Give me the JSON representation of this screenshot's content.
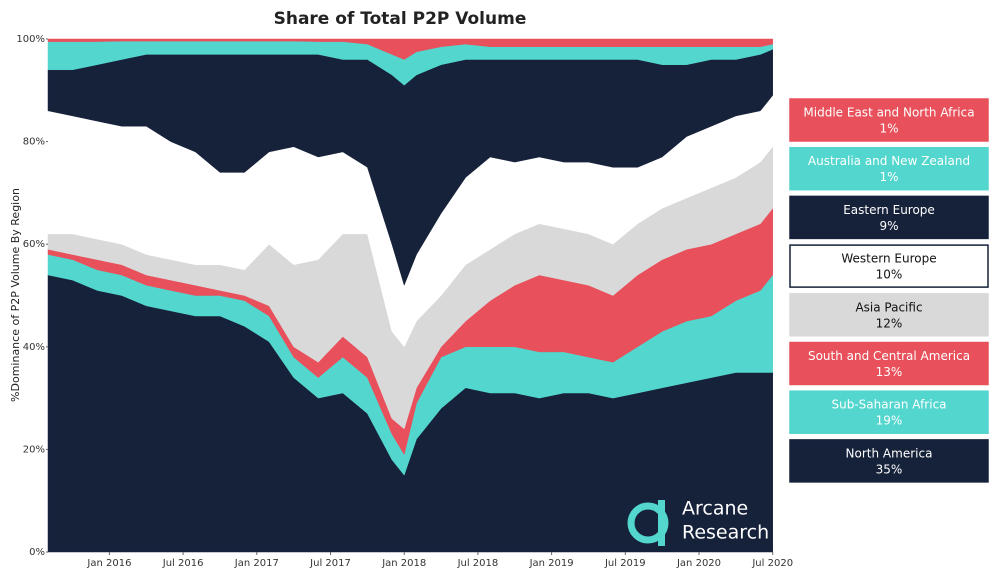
{
  "chart_data": {
    "type": "stacked_area",
    "title": "Share of Total P2P Volume",
    "y_label": "%Dominance of P2P Volume By Region",
    "x": [
      "2015-08",
      "2015-10",
      "2015-12",
      "2016-02",
      "2016-04",
      "2016-06",
      "2016-08",
      "2016-10",
      "2016-12",
      "2017-02",
      "2017-04",
      "2017-06",
      "2017-08",
      "2017-10",
      "2017-12",
      "2018-01",
      "2018-02",
      "2018-04",
      "2018-06",
      "2018-08",
      "2018-10",
      "2018-12",
      "2019-02",
      "2019-04",
      "2019-06",
      "2019-08",
      "2019-10",
      "2019-12",
      "2020-02",
      "2020-04",
      "2020-06",
      "2020-07"
    ],
    "xlim": [
      "2015-08",
      "2020-08"
    ],
    "xticks": [
      {
        "value": "2016-01",
        "label": "Jan 2016"
      },
      {
        "value": "2016-07",
        "label": "Jul 2016"
      },
      {
        "value": "2017-01",
        "label": "Jan 2017"
      },
      {
        "value": "2017-07",
        "label": "Jul 2017"
      },
      {
        "value": "2018-01",
        "label": "Jan 2018"
      },
      {
        "value": "2018-07",
        "label": "Jul 2018"
      },
      {
        "value": "2019-01",
        "label": "Jan 2019"
      },
      {
        "value": "2019-07",
        "label": "Jul 2019"
      },
      {
        "value": "2020-01",
        "label": "Jan 2020"
      },
      {
        "value": "2020-07",
        "label": "Jul 2020"
      }
    ],
    "ylim": [
      0,
      100
    ],
    "yticks": [
      {
        "value": 0,
        "label": "0%"
      },
      {
        "value": 20,
        "label": "20%"
      },
      {
        "value": 40,
        "label": "40%"
      },
      {
        "value": 60,
        "label": "60%"
      },
      {
        "value": 80,
        "label": "80%"
      },
      {
        "value": 100,
        "label": "100%"
      }
    ],
    "grid": false,
    "legend": "right",
    "watermark": [
      "Arcane",
      "Research"
    ],
    "series": [
      {
        "name": "North America",
        "color": "#16213a",
        "share": 35,
        "share_label": "35%",
        "values": [
          54,
          53,
          51,
          50,
          48,
          47,
          46,
          46,
          44,
          41,
          34,
          30,
          31,
          27,
          18,
          15,
          22,
          28,
          32,
          31,
          31,
          30,
          31,
          31,
          30,
          31,
          32,
          33,
          34,
          35,
          35,
          35
        ]
      },
      {
        "name": "Sub-Saharan Africa",
        "color": "#52d6cd",
        "share": 19,
        "share_label": "19%",
        "values": [
          4,
          4,
          4,
          4,
          4,
          4,
          4,
          4,
          5,
          5,
          4,
          4,
          7,
          7,
          5,
          4,
          7,
          10,
          8,
          9,
          9,
          9,
          8,
          7,
          7,
          9,
          11,
          12,
          12,
          14,
          16,
          19
        ]
      },
      {
        "name": "South and Central America",
        "color": "#e8505b",
        "share": 13,
        "share_label": "13%",
        "values": [
          1,
          1,
          2,
          2,
          2,
          2,
          2,
          1,
          1,
          2,
          2,
          3,
          4,
          4,
          3,
          5,
          3,
          2,
          5,
          9,
          12,
          15,
          14,
          14,
          13,
          14,
          14,
          14,
          14,
          13,
          13,
          13
        ]
      },
      {
        "name": "Asia Pacific",
        "color": "#d9d9d9",
        "share": 12,
        "share_label": "12%",
        "values": [
          3,
          4,
          4,
          4,
          4,
          4,
          4,
          5,
          5,
          12,
          16,
          20,
          20,
          24,
          17,
          16,
          13,
          10,
          11,
          10,
          10,
          10,
          10,
          10,
          10,
          10,
          10,
          10,
          11,
          11,
          12,
          12
        ]
      },
      {
        "name": "Western Europe",
        "color": "#ffffff",
        "share": 10,
        "share_label": "10%",
        "values": [
          24,
          23,
          23,
          23,
          25,
          23,
          22,
          18,
          19,
          18,
          23,
          20,
          16,
          13,
          17,
          12,
          13,
          16,
          17,
          18,
          14,
          13,
          13,
          14,
          15,
          11,
          10,
          12,
          12,
          12,
          10,
          10
        ]
      },
      {
        "name": "Eastern Europe",
        "color": "#16213a",
        "share": 9,
        "share_label": "9%",
        "values": [
          8,
          9,
          11,
          13,
          14,
          17,
          19,
          23,
          23,
          19,
          18,
          20,
          18,
          21,
          33,
          39,
          35,
          29,
          23,
          19,
          20,
          19,
          20,
          20,
          21,
          21,
          18,
          14,
          13,
          11,
          11,
          9
        ]
      },
      {
        "name": "Australia and New Zealand",
        "color": "#52d6cd",
        "share": 1,
        "share_label": "1%",
        "values": [
          5.5,
          5.5,
          4.5,
          3.6,
          2.6,
          2.6,
          2.6,
          2.6,
          2.6,
          2.6,
          2.6,
          2.5,
          3.5,
          3,
          4,
          5,
          4.5,
          3.5,
          3,
          2.5,
          2.5,
          2.5,
          2.5,
          2.5,
          2.5,
          2.5,
          3.5,
          3.5,
          2.5,
          2.5,
          1.5,
          1
        ]
      },
      {
        "name": "Middle East and North Africa",
        "color": "#e8505b",
        "share": 1,
        "share_label": "1%",
        "values": [
          0.5,
          0.5,
          0.5,
          0.4,
          0.4,
          0.4,
          0.4,
          0.4,
          0.4,
          0.4,
          0.4,
          0.5,
          0.5,
          1,
          3,
          4,
          2.5,
          1.5,
          1,
          1.5,
          1.5,
          1.5,
          1.5,
          1.5,
          1.5,
          1.5,
          1.5,
          1.5,
          1.5,
          1.5,
          1.5,
          1
        ]
      }
    ]
  }
}
